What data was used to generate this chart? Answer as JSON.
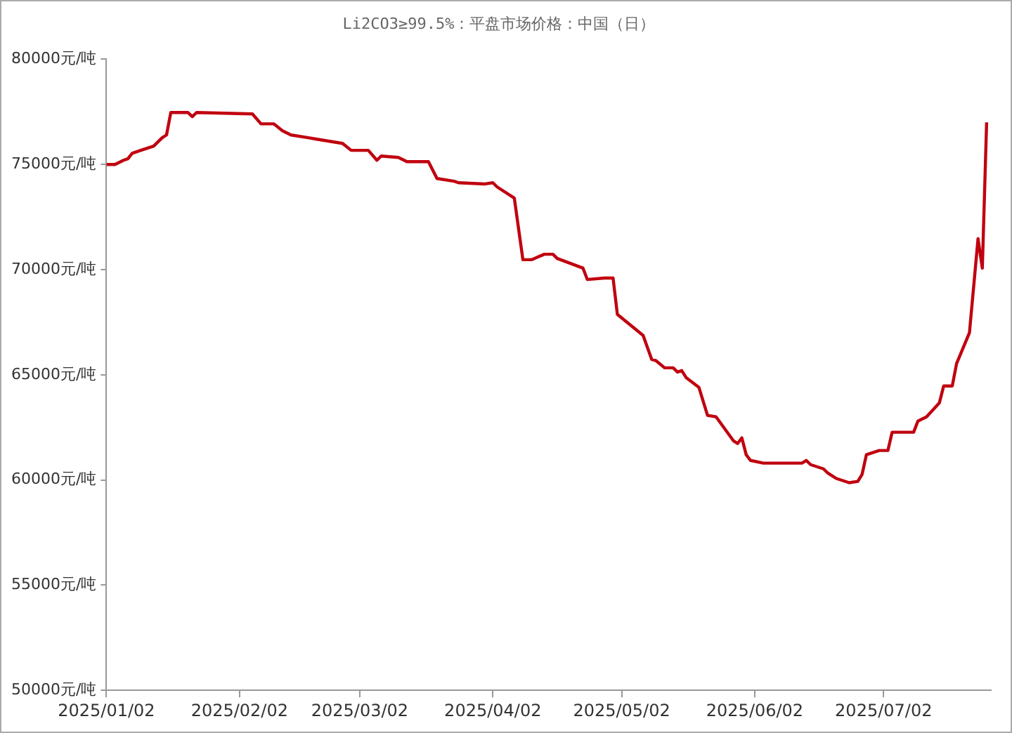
{
  "chart_data": {
    "type": "line",
    "title": "Li2CO3≥99.5%：平盘市场价格：中国（日）",
    "x": [
      "2025-01-02",
      "2025-01-04",
      "2025-01-06",
      "2025-01-07",
      "2025-01-08",
      "2025-01-10",
      "2025-01-13",
      "2025-01-15",
      "2025-01-16",
      "2025-01-17",
      "2025-01-21",
      "2025-01-22",
      "2025-01-23",
      "2025-02-05",
      "2025-02-07",
      "2025-02-10",
      "2025-02-12",
      "2025-02-14",
      "2025-02-18",
      "2025-02-20",
      "2025-02-26",
      "2025-02-28",
      "2025-03-04",
      "2025-03-06",
      "2025-03-07",
      "2025-03-11",
      "2025-03-13",
      "2025-03-18",
      "2025-03-20",
      "2025-03-24",
      "2025-03-25",
      "2025-03-31",
      "2025-04-02",
      "2025-04-03",
      "2025-04-07",
      "2025-04-09",
      "2025-04-11",
      "2025-04-14",
      "2025-04-16",
      "2025-04-17",
      "2025-04-23",
      "2025-04-24",
      "2025-04-28",
      "2025-04-30",
      "2025-05-01",
      "2025-05-07",
      "2025-05-09",
      "2025-05-10",
      "2025-05-12",
      "2025-05-14",
      "2025-05-15",
      "2025-05-16",
      "2025-05-17",
      "2025-05-20",
      "2025-05-22",
      "2025-05-24",
      "2025-05-28",
      "2025-05-29",
      "2025-05-30",
      "2025-05-31",
      "2025-06-01",
      "2025-06-04",
      "2025-06-13",
      "2025-06-14",
      "2025-06-15",
      "2025-06-18",
      "2025-06-19",
      "2025-06-20",
      "2025-06-21",
      "2025-06-24",
      "2025-06-26",
      "2025-06-27",
      "2025-06-28",
      "2025-07-01",
      "2025-07-03",
      "2025-07-04",
      "2025-07-09",
      "2025-07-10",
      "2025-07-12",
      "2025-07-15",
      "2025-07-16",
      "2025-07-18",
      "2025-07-19",
      "2025-07-22",
      "2025-07-24",
      "2025-07-25",
      "2025-07-26"
    ],
    "series": [
      {
        "color": "#c0000f",
        "values": [
          75000,
          75000,
          75200,
          75270,
          75530,
          75670,
          75870,
          76270,
          76400,
          77470,
          77470,
          77270,
          77470,
          77400,
          76930,
          76930,
          76600,
          76400,
          76270,
          76200,
          76000,
          75670,
          75670,
          75200,
          75400,
          75330,
          75130,
          75130,
          74330,
          74200,
          74130,
          74070,
          74130,
          73930,
          73400,
          70470,
          70470,
          70730,
          70730,
          70530,
          70070,
          69530,
          69600,
          69600,
          67870,
          66870,
          65730,
          65670,
          65330,
          65330,
          65130,
          65200,
          64870,
          64400,
          63070,
          63000,
          61870,
          61730,
          62000,
          61200,
          60930,
          60800,
          60800,
          60930,
          60730,
          60530,
          60330,
          60200,
          60070,
          59870,
          59930,
          60270,
          61200,
          61400,
          61400,
          62270,
          62270,
          62800,
          63000,
          63670,
          64470,
          64470,
          65530,
          67000,
          71470,
          70070,
          77000
        ]
      }
    ],
    "xlim": [
      "2025-01-02",
      "2025-07-27"
    ],
    "xticks": [
      {
        "value": "2025-01-02",
        "label": "2025/01/02"
      },
      {
        "value": "2025-02-02",
        "label": "2025/02/02"
      },
      {
        "value": "2025-03-02",
        "label": "2025/03/02"
      },
      {
        "value": "2025-04-02",
        "label": "2025/04/02"
      },
      {
        "value": "2025-05-02",
        "label": "2025/05/02"
      },
      {
        "value": "2025-06-02",
        "label": "2025/06/02"
      },
      {
        "value": "2025-07-02",
        "label": "2025/07/02"
      }
    ],
    "ylim": [
      50000,
      80000
    ],
    "yticks": [
      {
        "value": 50000,
        "label": "50000元/吨"
      },
      {
        "value": 55000,
        "label": "55000元/吨"
      },
      {
        "value": 60000,
        "label": "60000元/吨"
      },
      {
        "value": 65000,
        "label": "65000元/吨"
      },
      {
        "value": 70000,
        "label": "70000元/吨"
      },
      {
        "value": 75000,
        "label": "75000元/吨"
      },
      {
        "value": 80000,
        "label": "80000元/吨"
      }
    ],
    "marker": "none",
    "line_style": "solid"
  }
}
